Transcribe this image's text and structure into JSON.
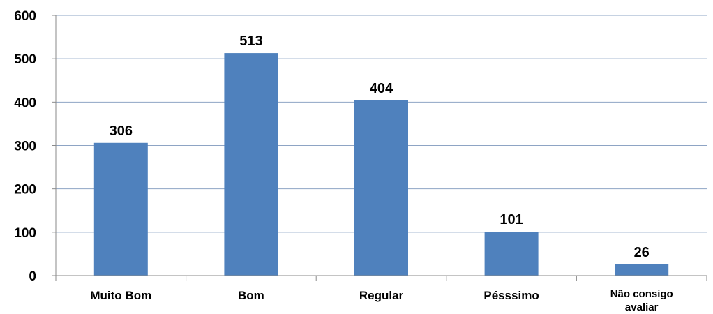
{
  "chart_data": {
    "type": "bar",
    "categories": [
      "Muito Bom",
      "Bom",
      "Regular",
      "Pésssimo",
      "Não consigo avaliar"
    ],
    "category_lines": [
      [
        "Muito Bom"
      ],
      [
        "Bom"
      ],
      [
        "Regular"
      ],
      [
        "Pésssimo"
      ],
      [
        "Não consigo",
        "avaliar"
      ]
    ],
    "values": [
      306,
      513,
      404,
      101,
      26
    ],
    "data_labels": [
      "306",
      "513",
      "404",
      "101",
      "26"
    ],
    "yticks": [
      0,
      100,
      200,
      300,
      400,
      500,
      600
    ],
    "ylim": [
      0,
      600
    ],
    "title": "",
    "xlabel": "",
    "ylabel": "",
    "grid": true,
    "legend": "none",
    "bar_color": "#4f81bd",
    "grid_color": "#8ea4c4"
  }
}
